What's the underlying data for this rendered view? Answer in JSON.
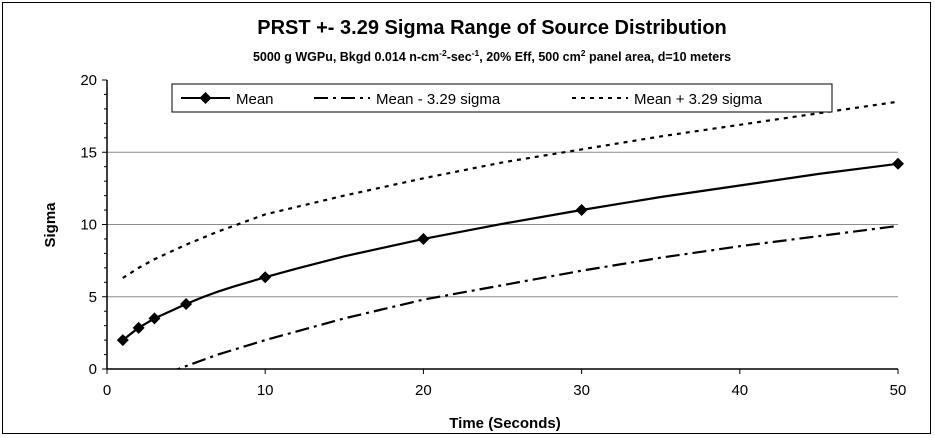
{
  "chart_data": {
    "type": "line",
    "title": "PRST  +- 3.29 Sigma Range of Source Distribution",
    "subtitle": {
      "p1": "5000 g WGPu, Bkgd 0.014 n-cm",
      "sup1": "-2",
      "p2": "-sec",
      "sup2": "-1",
      "p3": ", 20% Eff, 500 cm",
      "sup3": "2",
      "p4": " panel area,  d=10 meters"
    },
    "xlabel": "Time (Seconds)",
    "ylabel": "Sigma",
    "xlim": [
      0,
      50
    ],
    "ylim": [
      0,
      20
    ],
    "x_ticks": [
      "0",
      "10",
      "20",
      "30",
      "40",
      "50"
    ],
    "y_ticks": [
      "0",
      "5",
      "10",
      "15",
      "20"
    ],
    "grid": "horizontal",
    "legend_position": "top",
    "series": [
      {
        "name": "Mean",
        "style": "solid-diamond",
        "x": [
          1,
          2,
          3,
          5,
          10,
          20,
          30,
          50
        ],
        "y": [
          2.0,
          2.85,
          3.5,
          4.5,
          6.35,
          9.0,
          11.0,
          14.2
        ],
        "curve_x": [
          1,
          2,
          3,
          4,
          5,
          6,
          7,
          8,
          10,
          12,
          15,
          20,
          25,
          30,
          35,
          40,
          45,
          50
        ],
        "curve_y": [
          2.0,
          2.85,
          3.5,
          4.0,
          4.5,
          4.95,
          5.35,
          5.7,
          6.35,
          6.95,
          7.8,
          9.0,
          10.05,
          11.0,
          11.9,
          12.7,
          13.5,
          14.2
        ]
      },
      {
        "name": "Mean - 3.29 sigma",
        "style": "dash-dot",
        "x": [
          3.8,
          5,
          7,
          10,
          15,
          20,
          25,
          30,
          35,
          40,
          45,
          50
        ],
        "y": [
          -0.3,
          0.2,
          1.0,
          2.0,
          3.5,
          4.8,
          5.8,
          6.8,
          7.7,
          8.5,
          9.2,
          9.9
        ]
      },
      {
        "name": "Mean + 3.29 sigma",
        "style": "dashed",
        "x": [
          1,
          2,
          3,
          5,
          7,
          10,
          15,
          20,
          25,
          30,
          35,
          40,
          45,
          50
        ],
        "y": [
          6.3,
          7.0,
          7.6,
          8.6,
          9.5,
          10.7,
          12.0,
          13.2,
          14.3,
          15.2,
          16.1,
          16.9,
          17.7,
          18.5
        ]
      }
    ]
  }
}
